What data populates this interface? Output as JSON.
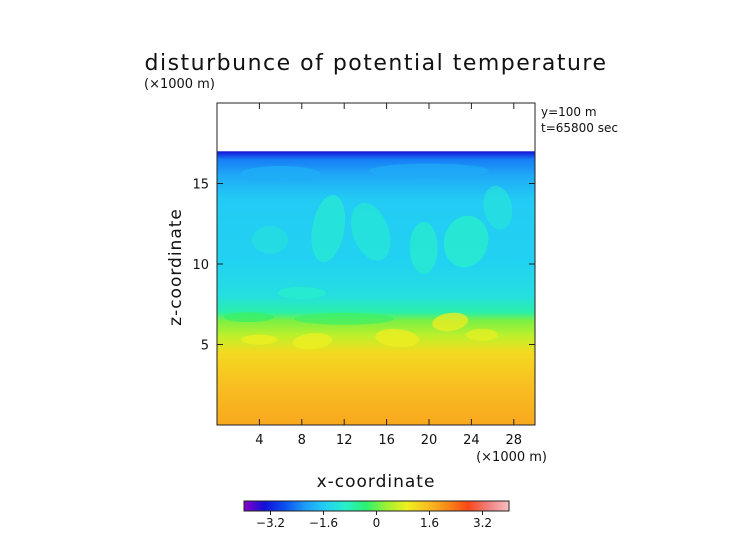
{
  "chart_data": {
    "type": "heatmap",
    "title": "disturbunce of potential temperature",
    "xlabel": "x-coordinate",
    "ylabel": "z-coordinate",
    "x_unit": "(×1000 m)",
    "y_unit": "(×1000 m)",
    "annotations": [
      "y=100 m",
      "t=65800 sec"
    ],
    "xlim": [
      0,
      30
    ],
    "ylim": [
      0,
      20
    ],
    "x_ticks": [
      4,
      8,
      12,
      16,
      20,
      24,
      28
    ],
    "y_ticks": [
      5,
      10,
      15
    ],
    "colorbar": {
      "range": [
        -4,
        4
      ],
      "ticks": [
        -3.2,
        -1.6,
        0,
        1.6,
        3.2
      ],
      "tick_labels": [
        "−3.2",
        "−1.6",
        "0",
        "1.6",
        "3.2"
      ],
      "colors": [
        "#8a00c8",
        "#1010d8",
        "#0a50f0",
        "#1e9cf8",
        "#22d0f4",
        "#28f0c8",
        "#2cf070",
        "#a0f030",
        "#f0f020",
        "#f8c020",
        "#f88818",
        "#f84818",
        "#f08080",
        "#f8c0c0"
      ]
    },
    "data_top_z": 17.0,
    "profile": [
      {
        "z": 0.0,
        "value": 1.8
      },
      {
        "z": 2.5,
        "value": 1.55
      },
      {
        "z": 4.5,
        "value": 1.2
      },
      {
        "z": 5.5,
        "value": 0.55
      },
      {
        "z": 6.5,
        "value": 0.1
      },
      {
        "z": 7.0,
        "value": -0.7
      },
      {
        "z": 8.0,
        "value": -1.25
      },
      {
        "z": 10.0,
        "value": -1.5
      },
      {
        "z": 14.0,
        "value": -1.6
      },
      {
        "z": 15.5,
        "value": -2.0
      },
      {
        "z": 16.5,
        "value": -2.4
      },
      {
        "z": 17.0,
        "value": -3.4
      }
    ]
  }
}
